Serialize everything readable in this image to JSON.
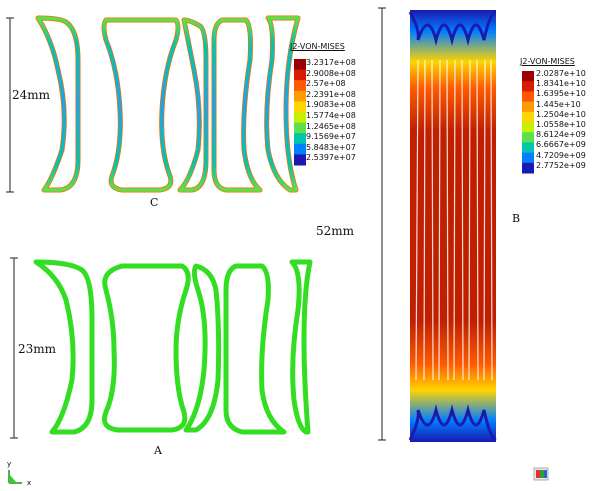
{
  "panels": {
    "a": {
      "letter": "A",
      "dimension": "23mm",
      "color": "#33dd22"
    },
    "b": {
      "letter": "B",
      "dimension": "52mm"
    },
    "c": {
      "letter": "C",
      "dimension": "24mm"
    }
  },
  "legend_c": {
    "title": "J2-VON-MISES",
    "values": [
      "3.2317e+08",
      "2.9008e+08",
      "2.57e+08",
      "2.2391e+08",
      "1.9083e+08",
      "1.5774e+08",
      "1.2465e+08",
      "9.1569e+07",
      "5.8483e+07",
      "2.5397e+07"
    ]
  },
  "legend_b": {
    "title": "J2-VON-MISES",
    "values": [
      "2.0287e+10",
      "1.8341e+10",
      "1.6395e+10",
      "1.445e+10",
      "1.2504e+10",
      "1.0558e+10",
      "8.6124e+09",
      "6.6667e+09",
      "4.7209e+09",
      "2.7752e+09"
    ]
  },
  "colormap": [
    "#9b0000",
    "#d81c00",
    "#ff5a00",
    "#ff9a00",
    "#ffd400",
    "#c8ef00",
    "#5fe04a",
    "#00c6b0",
    "#0080ff",
    "#1a1ab0"
  ],
  "axis_triad": {
    "y": "y",
    "x": "x"
  }
}
